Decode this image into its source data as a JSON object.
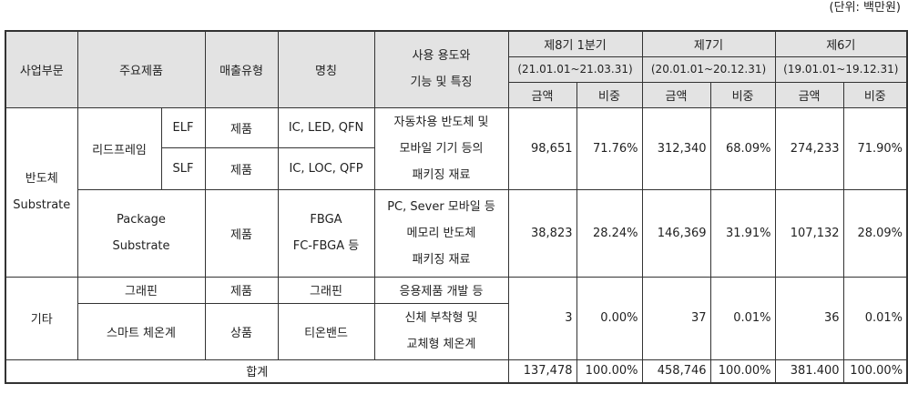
{
  "unit_label": "(단위: 백만원)",
  "header": {
    "division": "사업부문",
    "product": "주요제품",
    "sales_type": "매출유형",
    "name": "명칭",
    "usage_line1": "사용 용도와",
    "usage_line2": "기능 및 특징",
    "periods": [
      {
        "label": "제8기 1분기",
        "range": "(21.01.01~21.03.31)"
      },
      {
        "label": "제7기",
        "range": "(20.01.01~20.12.31)"
      },
      {
        "label": "제6기",
        "range": "(19.01.01~19.12.31)"
      }
    ],
    "amount": "금액",
    "ratio": "비중"
  },
  "rows": {
    "semiconductor": {
      "division_line1": "반도체",
      "division_line2": "Substrate",
      "leadframe": {
        "product": "리드프레임",
        "elf": {
          "sub": "ELF",
          "type": "제품",
          "name": "IC, LED, QFN"
        },
        "slf": {
          "sub": "SLF",
          "type": "제품",
          "name": "IC, LOC, QFP"
        },
        "usage": [
          "자동차용 반도체 및",
          "모바일 기기 등의",
          "패키징 재료"
        ],
        "values": [
          "98,651",
          "71.76%",
          "312,340",
          "68.09%",
          "274,233",
          "71.90%"
        ]
      },
      "package": {
        "product_line1": "Package",
        "product_line2": "Substrate",
        "type": "제품",
        "name_line1": "FBGA",
        "name_line2": "FC-FBGA 등",
        "usage": [
          "PC, Sever 모바일 등",
          "메모리 반도체",
          "패키징 재료"
        ],
        "values": [
          "38,823",
          "28.24%",
          "146,369",
          "31.91%",
          "107,132",
          "28.09%"
        ]
      }
    },
    "other": {
      "division": "기타",
      "graphene": {
        "product": "그래핀",
        "type": "제품",
        "name": "그래핀",
        "usage": "응용제품 개발 등"
      },
      "thermometer": {
        "product": "스마트 체온계",
        "type": "상품",
        "name": "티온밴드",
        "usage": [
          "신체 부착형 및",
          "교체형 체온계"
        ]
      },
      "values": [
        "3",
        "0.00%",
        "37",
        "0.01%",
        "36",
        "0.01%"
      ]
    },
    "total": {
      "label": "합계",
      "values": [
        "137,478",
        "100.00%",
        "458,746",
        "100.00%",
        "381.400",
        "100.00%"
      ]
    }
  }
}
